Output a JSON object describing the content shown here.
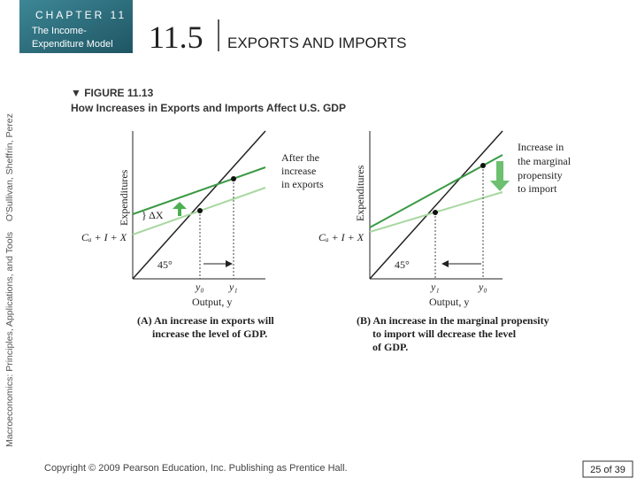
{
  "header": {
    "chapter": "CHAPTER 11",
    "subtitle_lines": [
      "The Income-",
      "Expenditure Model"
    ]
  },
  "side_text": "Macroeconomics: Principles, Applications, and Tools    O'Sullivan, Sheffrin, Perez",
  "section": {
    "number": "11.5",
    "title": "EXPORTS AND IMPORTS"
  },
  "figure": {
    "label": "▼ FIGURE 11.13",
    "caption": "How Increases in Exports and Imports Affect U.S. GDP"
  },
  "panels": [
    {
      "y_axis": "Expenditures",
      "x_axis": "Output, y",
      "line_label": "Cₐ + I + X",
      "angle": "45°",
      "note_lines": [
        "After  the",
        "increase",
        "in exports"
      ],
      "delta": "} ΔX",
      "y0": "y₀",
      "y1": "y₁",
      "caption_lines": [
        "(A) An increase in exports will",
        "increase the level of GDP."
      ]
    },
    {
      "y_axis": "Expenditures",
      "x_axis": "Output, y",
      "line_label": "Cₐ + I + X",
      "angle": "45°",
      "note_lines": [
        "Increase in",
        "the marginal",
        "propensity",
        "to import"
      ],
      "y0": "y₀",
      "y1": "y₁",
      "caption_lines": [
        "(B) An increase in the marginal propensity",
        "to import will decrease the level",
        "of GDP."
      ]
    }
  ],
  "footer": {
    "copyright": "Copyright © 2009 Pearson Education, Inc. Publishing as Prentice Hall.",
    "page": "25 of 39"
  }
}
